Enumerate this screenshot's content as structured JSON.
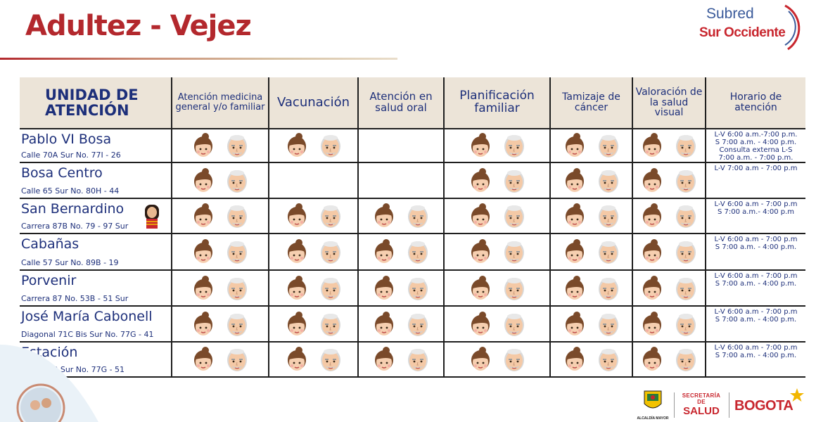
{
  "title": "Adultez - Vejez",
  "brand": {
    "line1": "Subred",
    "line2": "Sur Occidente"
  },
  "headers": [
    "UNIDAD DE ATENCIÓN",
    "Atención medicina general y/o familiar",
    "Vacunación",
    "Atención en salud oral",
    "Planificación familiar",
    "Tamizaje de cáncer",
    "Valoración de la salud  visual",
    "Horario de atención"
  ],
  "rows": [
    {
      "name": "Pablo VI Bosa",
      "address": "Calle 70A Sur No. 77I - 26",
      "services": [
        true,
        true,
        false,
        true,
        true,
        true
      ],
      "schedule": "L-V 6:00  a.m.-7:00 p.m.\nS 7:00 a.m. - 4:00 p.m.\nConsulta externa L-S\n7:00 a.m. - 7:00 p.m."
    },
    {
      "name": "Bosa Centro",
      "address": "Calle 65 Sur No. 80H - 44",
      "services": [
        true,
        false,
        false,
        true,
        true,
        true
      ],
      "schedule": "L-V 7:00 a.m - 7:00 p.m"
    },
    {
      "name": "San Bernardino",
      "address": "Carrera 87B No. 79 - 97 Sur",
      "services": [
        true,
        true,
        true,
        true,
        true,
        true
      ],
      "schedule": "L-V 6:00 a.m - 7:00 p.m\nS 7:00 a.m.- 4:00 p.m"
    },
    {
      "name": "Cabañas",
      "address": "Calle 57 Sur No. 89B - 19",
      "services": [
        true,
        true,
        true,
        true,
        true,
        true
      ],
      "schedule": "L-V 6:00 a.m - 7:00 p.m\nS 7:00 a.m. - 4:00 p.m."
    },
    {
      "name": "Porvenir",
      "address": "Carrera 87 No. 53B - 51 Sur",
      "services": [
        true,
        true,
        true,
        true,
        true,
        true
      ],
      "schedule": "L-V 6:00 a.m - 7:00 p.m\nS 7:00 a.m. - 4:00 p.m."
    },
    {
      "name": "José María Cabonell",
      "address": "Diagonal 71C Bis Sur No. 77G - 41",
      "services": [
        true,
        true,
        true,
        true,
        true,
        true
      ],
      "schedule": "L-V 6:00 a.m - 7:00 p.m\nS 7:00 a.m. - 4:00 p.m."
    },
    {
      "name": "Estación",
      "address": "Calle 60B Sur No. 77G - 51",
      "services": [
        true,
        true,
        true,
        true,
        true,
        true
      ],
      "schedule": "L-V 6:00 a.m - 7:00 p.m\nS 7:00 a.m. - 4:00 p.m."
    }
  ],
  "footer": {
    "alcaldia": "ALCALDÍA MAYOR",
    "secretaria_line1": "SECRETARÍA DE",
    "secretaria_line2": "SALUD",
    "bogota": "BOGOTA"
  },
  "colors": {
    "title": "#b3282d",
    "text": "#1d2f7a",
    "header_bg": "#ece4d8",
    "brand_red": "#c8262e",
    "brand_blue": "#3a5a9a"
  },
  "icons": {
    "adult": "young-woman-icon",
    "elder": "elderly-man-icon"
  }
}
